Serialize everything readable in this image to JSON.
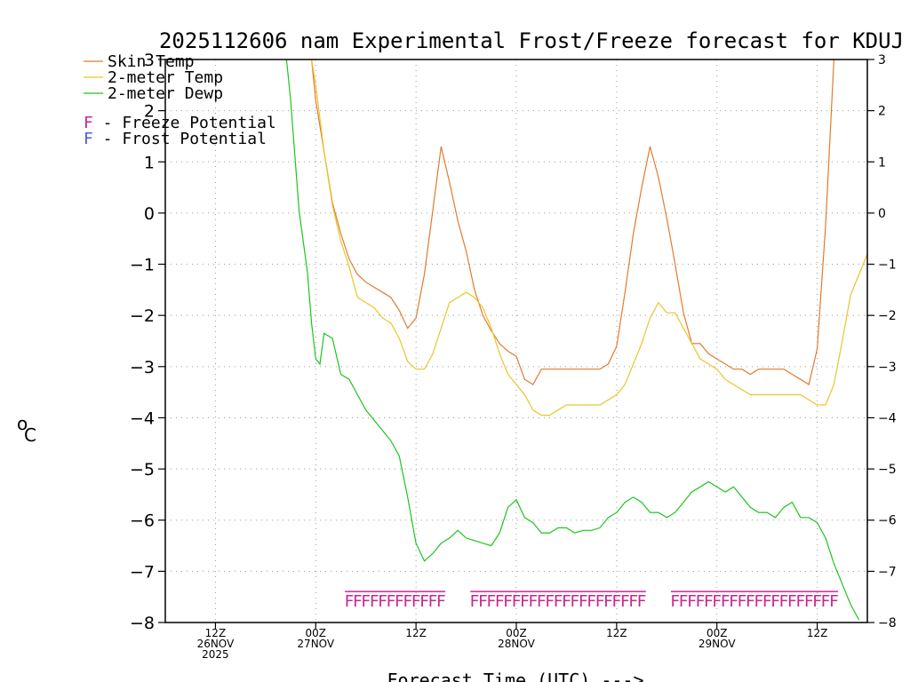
{
  "chart_data": {
    "type": "line",
    "title": "2025112606 nam Experimental Frost/Freeze forecast for KDUJ",
    "xlabel": "Forecast Time (UTC) --->",
    "ylabel": "°C",
    "ylabel_main": "o",
    "ylabel_unit": "C",
    "ylim": [
      -8,
      3
    ],
    "yticks": [
      -8,
      -7,
      -6,
      -5,
      -4,
      -3,
      -2,
      -1,
      0,
      1,
      2,
      3
    ],
    "ytick_labels": [
      "−8",
      "−7",
      "−6",
      "−5",
      "−4",
      "−3",
      "−2",
      "−1",
      "0",
      "1",
      "2",
      "3"
    ],
    "xlim_hours": [
      0,
      84
    ],
    "grid": true,
    "xticks": [
      {
        "hour": 6,
        "lines": [
          "12Z",
          "26NOV",
          "2025"
        ]
      },
      {
        "hour": 18,
        "lines": [
          "00Z",
          "27NOV"
        ]
      },
      {
        "hour": 30,
        "lines": [
          "12Z"
        ]
      },
      {
        "hour": 42,
        "lines": [
          "00Z",
          "28NOV"
        ]
      },
      {
        "hour": 54,
        "lines": [
          "12Z"
        ]
      },
      {
        "hour": 66,
        "lines": [
          "00Z",
          "29NOV"
        ]
      },
      {
        "hour": 78,
        "lines": [
          "12Z"
        ]
      }
    ],
    "series": [
      {
        "name": "Skin Temp",
        "color": "#e07b2f",
        "points": [
          [
            17.5,
            3.0
          ],
          [
            18,
            2.2
          ],
          [
            19,
            1.2
          ],
          [
            20,
            0.2
          ],
          [
            21,
            -0.4
          ],
          [
            22,
            -0.9
          ],
          [
            23,
            -1.2
          ],
          [
            24,
            -1.35
          ],
          [
            25,
            -1.45
          ],
          [
            26,
            -1.55
          ],
          [
            27,
            -1.65
          ],
          [
            28,
            -1.9
          ],
          [
            29,
            -2.25
          ],
          [
            30,
            -2.05
          ],
          [
            31,
            -1.2
          ],
          [
            32,
            0.05
          ],
          [
            33,
            1.3
          ],
          [
            34,
            0.6
          ],
          [
            35,
            -0.15
          ],
          [
            36,
            -0.75
          ],
          [
            37,
            -1.5
          ],
          [
            38,
            -2.0
          ],
          [
            39,
            -2.3
          ],
          [
            40,
            -2.55
          ],
          [
            41,
            -2.7
          ],
          [
            42,
            -2.8
          ],
          [
            43,
            -3.25
          ],
          [
            44,
            -3.35
          ],
          [
            45,
            -3.05
          ],
          [
            46,
            -3.05
          ],
          [
            47,
            -3.05
          ],
          [
            48,
            -3.05
          ],
          [
            49,
            -3.05
          ],
          [
            50,
            -3.05
          ],
          [
            51,
            -3.05
          ],
          [
            52,
            -3.05
          ],
          [
            53,
            -2.95
          ],
          [
            54,
            -2.6
          ],
          [
            55,
            -1.55
          ],
          [
            56,
            -0.4
          ],
          [
            57,
            0.5
          ],
          [
            58,
            1.3
          ],
          [
            59,
            0.7
          ],
          [
            60,
            -0.1
          ],
          [
            61,
            -1.0
          ],
          [
            62,
            -1.95
          ],
          [
            63,
            -2.55
          ],
          [
            64,
            -2.55
          ],
          [
            65,
            -2.75
          ],
          [
            66,
            -2.85
          ],
          [
            67,
            -2.95
          ],
          [
            68,
            -3.05
          ],
          [
            69,
            -3.05
          ],
          [
            70,
            -3.15
          ],
          [
            71,
            -3.05
          ],
          [
            72,
            -3.05
          ],
          [
            73,
            -3.05
          ],
          [
            74,
            -3.05
          ],
          [
            75,
            -3.15
          ],
          [
            76,
            -3.25
          ],
          [
            77,
            -3.35
          ],
          [
            78,
            -2.65
          ],
          [
            79,
            -0.25
          ],
          [
            80,
            3.0
          ]
        ]
      },
      {
        "name": "2-meter Temp",
        "color": "#e8c62a",
        "points": [
          [
            17.5,
            3.0
          ],
          [
            18,
            2.5
          ],
          [
            19,
            1.2
          ],
          [
            20,
            0.15
          ],
          [
            21,
            -0.55
          ],
          [
            22,
            -1.05
          ],
          [
            23,
            -1.65
          ],
          [
            24,
            -1.75
          ],
          [
            25,
            -1.85
          ],
          [
            26,
            -2.05
          ],
          [
            27,
            -2.15
          ],
          [
            28,
            -2.45
          ],
          [
            29,
            -2.9
          ],
          [
            30,
            -3.05
          ],
          [
            31,
            -3.05
          ],
          [
            32,
            -2.75
          ],
          [
            33,
            -2.25
          ],
          [
            34,
            -1.75
          ],
          [
            35,
            -1.65
          ],
          [
            36,
            -1.55
          ],
          [
            37,
            -1.65
          ],
          [
            38,
            -1.85
          ],
          [
            39,
            -2.25
          ],
          [
            40,
            -2.75
          ],
          [
            41,
            -3.15
          ],
          [
            42,
            -3.35
          ],
          [
            43,
            -3.55
          ],
          [
            44,
            -3.85
          ],
          [
            45,
            -3.95
          ],
          [
            46,
            -3.95
          ],
          [
            47,
            -3.85
          ],
          [
            48,
            -3.75
          ],
          [
            49,
            -3.75
          ],
          [
            50,
            -3.75
          ],
          [
            51,
            -3.75
          ],
          [
            52,
            -3.75
          ],
          [
            53,
            -3.65
          ],
          [
            54,
            -3.55
          ],
          [
            55,
            -3.35
          ],
          [
            56,
            -2.95
          ],
          [
            57,
            -2.55
          ],
          [
            58,
            -2.05
          ],
          [
            59,
            -1.75
          ],
          [
            60,
            -1.95
          ],
          [
            61,
            -1.95
          ],
          [
            62,
            -2.25
          ],
          [
            63,
            -2.55
          ],
          [
            64,
            -2.85
          ],
          [
            65,
            -2.95
          ],
          [
            66,
            -3.05
          ],
          [
            67,
            -3.25
          ],
          [
            68,
            -3.35
          ],
          [
            69,
            -3.45
          ],
          [
            70,
            -3.55
          ],
          [
            71,
            -3.55
          ],
          [
            72,
            -3.55
          ],
          [
            73,
            -3.55
          ],
          [
            74,
            -3.55
          ],
          [
            75,
            -3.55
          ],
          [
            76,
            -3.55
          ],
          [
            77,
            -3.65
          ],
          [
            78,
            -3.75
          ],
          [
            79,
            -3.75
          ],
          [
            80,
            -3.35
          ],
          [
            81,
            -2.5
          ],
          [
            82,
            -1.6
          ],
          [
            83,
            -1.2
          ],
          [
            84,
            -0.8
          ]
        ]
      },
      {
        "name": "2-meter Dewp",
        "color": "#1ec41e",
        "points": [
          [
            14.5,
            3.0
          ],
          [
            15,
            2.2
          ],
          [
            16,
            0.05
          ],
          [
            17,
            -1.15
          ],
          [
            17.5,
            -2.15
          ],
          [
            18,
            -2.85
          ],
          [
            18.5,
            -2.95
          ],
          [
            19,
            -2.35
          ],
          [
            20,
            -2.45
          ],
          [
            21,
            -3.15
          ],
          [
            22,
            -3.25
          ],
          [
            23,
            -3.55
          ],
          [
            24,
            -3.85
          ],
          [
            25,
            -4.05
          ],
          [
            26,
            -4.25
          ],
          [
            27,
            -4.45
          ],
          [
            28,
            -4.75
          ],
          [
            29,
            -5.55
          ],
          [
            30,
            -6.45
          ],
          [
            31,
            -6.8
          ],
          [
            32,
            -6.65
          ],
          [
            33,
            -6.45
          ],
          [
            34,
            -6.35
          ],
          [
            35,
            -6.2
          ],
          [
            36,
            -6.35
          ],
          [
            37,
            -6.4
          ],
          [
            38,
            -6.45
          ],
          [
            39,
            -6.5
          ],
          [
            40,
            -6.25
          ],
          [
            41,
            -5.75
          ],
          [
            42,
            -5.6
          ],
          [
            43,
            -5.95
          ],
          [
            44,
            -6.05
          ],
          [
            45,
            -6.25
          ],
          [
            46,
            -6.25
          ],
          [
            47,
            -6.15
          ],
          [
            48,
            -6.15
          ],
          [
            49,
            -6.25
          ],
          [
            50,
            -6.2
          ],
          [
            51,
            -6.2
          ],
          [
            52,
            -6.15
          ],
          [
            53,
            -5.95
          ],
          [
            54,
            -5.85
          ],
          [
            55,
            -5.65
          ],
          [
            56,
            -5.55
          ],
          [
            57,
            -5.65
          ],
          [
            58,
            -5.85
          ],
          [
            59,
            -5.85
          ],
          [
            60,
            -5.95
          ],
          [
            61,
            -5.85
          ],
          [
            62,
            -5.65
          ],
          [
            63,
            -5.45
          ],
          [
            64,
            -5.35
          ],
          [
            65,
            -5.25
          ],
          [
            66,
            -5.35
          ],
          [
            67,
            -5.45
          ],
          [
            68,
            -5.35
          ],
          [
            69,
            -5.55
          ],
          [
            70,
            -5.75
          ],
          [
            71,
            -5.85
          ],
          [
            72,
            -5.85
          ],
          [
            73,
            -5.95
          ],
          [
            74,
            -5.75
          ],
          [
            75,
            -5.65
          ],
          [
            76,
            -5.95
          ],
          [
            77,
            -5.95
          ],
          [
            78,
            -6.05
          ],
          [
            79,
            -6.35
          ],
          [
            80,
            -6.85
          ],
          [
            81,
            -7.25
          ],
          [
            82,
            -7.65
          ],
          [
            83,
            -7.95
          ]
        ]
      }
    ],
    "freeze_potential": {
      "color": "#c8278f",
      "symbol": "F",
      "level": -7.55,
      "runs": [
        [
          21.5,
          33.5
        ],
        [
          36.5,
          57.5
        ],
        [
          60.5,
          80.5
        ]
      ],
      "symbol_hours": [
        22,
        23,
        24,
        25,
        26,
        27,
        28,
        29,
        30,
        31,
        32,
        33,
        37,
        38,
        39,
        40,
        41,
        42,
        43,
        44,
        45,
        46,
        47,
        48,
        49,
        50,
        51,
        52,
        53,
        54,
        55,
        56,
        57,
        61,
        62,
        63,
        64,
        65,
        66,
        67,
        68,
        69,
        70,
        71,
        72,
        73,
        74,
        75,
        76,
        77,
        78,
        79,
        80
      ]
    },
    "legend": {
      "placement": "top-left",
      "entries": [
        {
          "label": "Skin Temp",
          "color": "#e07b2f",
          "type": "line"
        },
        {
          "label": "2-meter Temp",
          "color": "#e8c62a",
          "type": "line"
        },
        {
          "label": "2-meter Dewp",
          "color": "#1ec41e",
          "type": "line"
        }
      ],
      "symbols": [
        {
          "symbol": "F",
          "label": " - Freeze Potential",
          "color": "#c8278f"
        },
        {
          "symbol": "F",
          "label": " - Frost Potential",
          "color": "#4a5de0"
        }
      ]
    }
  }
}
